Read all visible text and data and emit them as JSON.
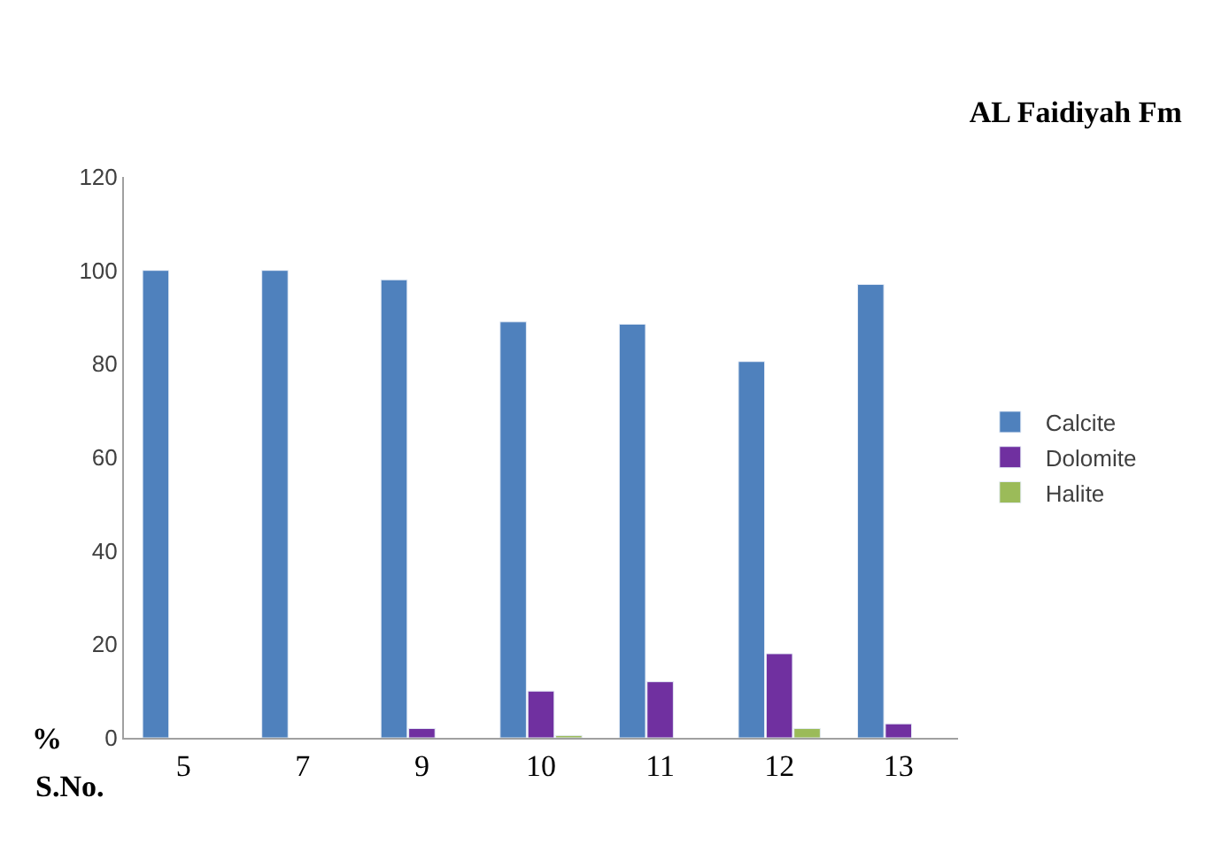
{
  "chart_data": {
    "type": "bar",
    "title": "AL Faidiyah Fm",
    "xlabel": "S.No.",
    "ylabel": "%",
    "categories": [
      "5",
      "7",
      "9",
      "10",
      "11",
      "12",
      "13"
    ],
    "series": [
      {
        "name": "Calcite",
        "color": "#4f81bd",
        "values": [
          100,
          100,
          98,
          89,
          88.5,
          80.5,
          97
        ]
      },
      {
        "name": "Dolomite",
        "color": "#7030a0",
        "values": [
          null,
          null,
          2,
          10,
          12,
          18,
          3
        ]
      },
      {
        "name": "Halite",
        "color": "#9bbb59",
        "values": [
          null,
          null,
          null,
          0.5,
          null,
          2,
          null
        ]
      }
    ],
    "ylim": [
      0,
      120
    ],
    "yticks": [
      0,
      20,
      40,
      60,
      80,
      100,
      120
    ],
    "legend": "right"
  }
}
